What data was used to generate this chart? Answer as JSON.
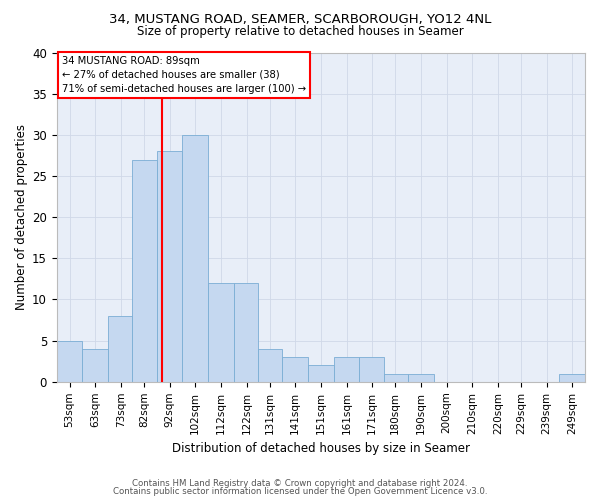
{
  "title1": "34, MUSTANG ROAD, SEAMER, SCARBOROUGH, YO12 4NL",
  "title2": "Size of property relative to detached houses in Seamer",
  "xlabel": "Distribution of detached houses by size in Seamer",
  "ylabel": "Number of detached properties",
  "footer1": "Contains HM Land Registry data © Crown copyright and database right 2024.",
  "footer2": "Contains public sector information licensed under the Open Government Licence v3.0.",
  "annotation_title": "34 MUSTANG ROAD: 89sqm",
  "annotation_line1": "← 27% of detached houses are smaller (38)",
  "annotation_line2": "71% of semi-detached houses are larger (100) →",
  "bar_color": "#c5d8f0",
  "bar_edge_color": "#7aadd4",
  "grid_color": "#d0d8e8",
  "bg_color": "#e8eef8",
  "red_line_x": 89,
  "categories": [
    53,
    63,
    73,
    82,
    92,
    102,
    112,
    122,
    131,
    141,
    151,
    161,
    171,
    180,
    190,
    200,
    210,
    220,
    229,
    239,
    249
  ],
  "values": [
    5,
    4,
    8,
    27,
    28,
    30,
    12,
    12,
    4,
    3,
    2,
    3,
    3,
    1,
    1,
    0,
    0,
    0,
    0,
    0,
    1
  ],
  "ylim": [
    0,
    40
  ],
  "yticks": [
    0,
    5,
    10,
    15,
    20,
    25,
    30,
    35,
    40
  ]
}
